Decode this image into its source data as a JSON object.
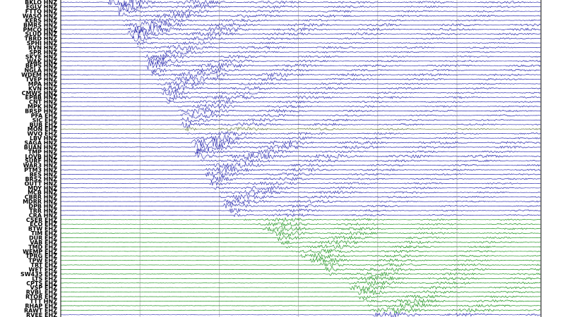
{
  "chart_data": {
    "type": "line",
    "title": "",
    "xlabel": "",
    "ylabel": "",
    "grid": true,
    "colors": {
      "primary_channel": "#1a1aa8",
      "late_channel": "#0a8a0a",
      "alt_channel": "#556b2f",
      "grid": "#b8b8b8",
      "frame": "#000000",
      "label": "#000000"
    },
    "series": [
      {
        "name": "BKLO HNZ",
        "onset": 0.1,
        "amplitude": 0.45,
        "color_key": "primary_channel"
      },
      {
        "name": "EGLV HNZ",
        "onset": 0.12,
        "amplitude": 0.4,
        "color_key": "primary_channel"
      },
      {
        "name": "FTTQ HNZ",
        "onset": 0.12,
        "amplitude": 0.38,
        "color_key": "primary_channel"
      },
      {
        "name": "WASO HNZ",
        "onset": 0.13,
        "amplitude": 0.42,
        "color_key": "primary_channel"
      },
      {
        "name": "KERS HNZ",
        "onset": 0.13,
        "amplitude": 0.35,
        "color_key": "primary_channel"
      },
      {
        "name": "BMRS HNZ",
        "onset": 0.13,
        "amplitude": 0.48,
        "color_key": "primary_channel"
      },
      {
        "name": "PMCO HNZ",
        "onset": 0.14,
        "amplitude": 0.5,
        "color_key": "primary_channel"
      },
      {
        "name": "SLUD HNZ",
        "onset": 0.14,
        "amplitude": 0.45,
        "color_key": "primary_channel"
      },
      {
        "name": "TBRD HNZ",
        "onset": 0.15,
        "amplitude": 0.3,
        "color_key": "primary_channel"
      },
      {
        "name": "SPHI HNZ",
        "onset": 0.16,
        "amplitude": 0.25,
        "color_key": "primary_channel"
      },
      {
        "name": "RVN HNZ",
        "onset": 0.16,
        "amplitude": 0.4,
        "color_key": "primary_channel"
      },
      {
        "name": "SPR HNZ",
        "onset": 0.17,
        "amplitude": 0.3,
        "color_key": "primary_channel"
      },
      {
        "name": "SKYE HNZ",
        "onset": 0.17,
        "amplitude": 0.32,
        "color_key": "primary_channel"
      },
      {
        "name": "WAK HNZ",
        "onset": 0.18,
        "amplitude": 0.35,
        "color_key": "primary_channel"
      },
      {
        "name": "BEPS HNZ",
        "onset": 0.18,
        "amplitude": 0.45,
        "color_key": "primary_channel"
      },
      {
        "name": "NGLA HNZ",
        "onset": 0.19,
        "amplitude": 0.35,
        "color_key": "primary_channel"
      },
      {
        "name": "WDEM HNZ",
        "onset": 0.19,
        "amplitude": 0.5,
        "color_key": "primary_channel"
      },
      {
        "name": "TVEP HNZ",
        "onset": 0.2,
        "amplitude": 0.4,
        "color_key": "primary_channel"
      },
      {
        "name": "MPA HNZ",
        "onset": 0.2,
        "amplitude": 0.3,
        "color_key": "primary_channel"
      },
      {
        "name": "KVN HNZ",
        "onset": 0.21,
        "amplitude": 0.32,
        "color_key": "primary_channel"
      },
      {
        "name": "CMWS HNZ",
        "onset": 0.21,
        "amplitude": 0.3,
        "color_key": "primary_channel"
      },
      {
        "name": "EPBB HNZ",
        "onset": 0.22,
        "amplitude": 0.4,
        "color_key": "primary_channel"
      },
      {
        "name": "CNT HNZ",
        "onset": 0.22,
        "amplitude": 0.3,
        "color_key": "primary_channel"
      },
      {
        "name": "MPK HNZ",
        "onset": 0.23,
        "amplitude": 0.32,
        "color_key": "primary_channel"
      },
      {
        "name": "BRSP HNZ",
        "onset": 0.24,
        "amplitude": 0.35,
        "color_key": "primary_channel"
      },
      {
        "name": "PFA EHZ",
        "onset": 0.25,
        "amplitude": 0.3,
        "color_key": "primary_channel"
      },
      {
        "name": "SIC EHZ",
        "onset": 0.25,
        "amplitude": 0.3,
        "color_key": "primary_channel"
      },
      {
        "name": "BUB EHZ",
        "onset": 0.25,
        "amplitude": 0.35,
        "color_key": "primary_channel"
      },
      {
        "name": "MON EHZ",
        "onset": 0.26,
        "amplitude": 0.3,
        "color_key": "alt_channel"
      },
      {
        "name": "WVQ EHZ",
        "onset": 0.26,
        "amplitude": 0.3,
        "color_key": "primary_channel"
      },
      {
        "name": "LBV HNZ",
        "onset": 0.27,
        "amplitude": 0.32,
        "color_key": "primary_channel"
      },
      {
        "name": "SAGA HNZ",
        "onset": 0.27,
        "amplitude": 0.5,
        "color_key": "primary_channel"
      },
      {
        "name": "BUAN HNZ",
        "onset": 0.28,
        "amplitude": 0.45,
        "color_key": "primary_channel"
      },
      {
        "name": "TMP HNZ",
        "onset": 0.28,
        "amplitude": 0.35,
        "color_key": "primary_channel"
      },
      {
        "name": "LOVB HNZ",
        "onset": 0.28,
        "amplitude": 0.55,
        "color_key": "primary_channel"
      },
      {
        "name": "SURF HNZ",
        "onset": 0.29,
        "amplitude": 0.35,
        "color_key": "primary_channel"
      },
      {
        "name": "WAR3 HNZ",
        "onset": 0.29,
        "amplitude": 0.35,
        "color_key": "primary_channel"
      },
      {
        "name": "PTM3 HNZ",
        "onset": 0.3,
        "amplitude": 0.35,
        "color_key": "primary_channel"
      },
      {
        "name": "BES HNZ",
        "onset": 0.3,
        "amplitude": 0.3,
        "color_key": "primary_channel"
      },
      {
        "name": "BRS2 HNZ",
        "onset": 0.31,
        "amplitude": 0.3,
        "color_key": "primary_channel"
      },
      {
        "name": "OUTT HNZ",
        "onset": 0.31,
        "amplitude": 0.3,
        "color_key": "primary_channel"
      },
      {
        "name": "MDY HNZ",
        "onset": 0.32,
        "amplitude": 0.3,
        "color_key": "primary_channel"
      },
      {
        "name": "MCB HNZ",
        "onset": 0.33,
        "amplitude": 0.35,
        "color_key": "primary_channel"
      },
      {
        "name": "CBRR HNZ",
        "onset": 0.33,
        "amplitude": 0.3,
        "color_key": "primary_channel"
      },
      {
        "name": "MDRR HNZ",
        "onset": 0.34,
        "amplitude": 0.3,
        "color_key": "primary_channel"
      },
      {
        "name": "DPB HNZ",
        "onset": 0.34,
        "amplitude": 0.28,
        "color_key": "primary_channel"
      },
      {
        "name": "TRR HNZ",
        "onset": 0.35,
        "amplitude": 0.28,
        "color_key": "primary_channel"
      },
      {
        "name": "CRA HNZ",
        "onset": 0.36,
        "amplitude": 0.25,
        "color_key": "primary_channel"
      },
      {
        "name": "CSER EHZ",
        "onset": 0.38,
        "amplitude": 0.25,
        "color_key": "late_channel"
      },
      {
        "name": "ECO EHZ",
        "onset": 0.4,
        "amplitude": 0.28,
        "color_key": "late_channel"
      },
      {
        "name": "BTW EHZ",
        "onset": 0.42,
        "amplitude": 0.3,
        "color_key": "late_channel"
      },
      {
        "name": "TIM EHZ",
        "onset": 0.44,
        "amplitude": 0.3,
        "color_key": "late_channel"
      },
      {
        "name": "DUR EHZ",
        "onset": 0.45,
        "amplitude": 0.3,
        "color_key": "late_channel"
      },
      {
        "name": "VAB EHZ",
        "onset": 0.46,
        "amplitude": 0.32,
        "color_key": "late_channel"
      },
      {
        "name": "TMD EHZ",
        "onset": 0.47,
        "amplitude": 0.32,
        "color_key": "late_channel"
      },
      {
        "name": "WEMP EHZ",
        "onset": 0.48,
        "amplitude": 0.3,
        "color_key": "late_channel"
      },
      {
        "name": "TPRG EHZ",
        "onset": 0.5,
        "amplitude": 0.3,
        "color_key": "late_channel"
      },
      {
        "name": "TPW EHZ",
        "onset": 0.52,
        "amplitude": 0.3,
        "color_key": "late_channel"
      },
      {
        "name": "TRT EHZ",
        "onset": 0.54,
        "amplitude": 0.3,
        "color_key": "late_channel"
      },
      {
        "name": "WET EHZ",
        "onset": 0.55,
        "amplitude": 0.32,
        "color_key": "late_channel"
      },
      {
        "name": "SW435 EHZ",
        "onset": 0.56,
        "amplitude": 0.32,
        "color_key": "late_channel"
      },
      {
        "name": "LTS EHZ",
        "onset": 0.58,
        "amplitude": 0.3,
        "color_key": "late_channel"
      },
      {
        "name": "CPTS EHZ",
        "onset": 0.6,
        "amplitude": 0.3,
        "color_key": "late_channel"
      },
      {
        "name": "VSP EHZ",
        "onset": 0.6,
        "amplitude": 0.3,
        "color_key": "late_channel"
      },
      {
        "name": "RVBL EHZ",
        "onset": 0.62,
        "amplitude": 0.3,
        "color_key": "late_channel"
      },
      {
        "name": "RTOR EHZ",
        "onset": 0.62,
        "amplitude": 0.28,
        "color_key": "late_channel"
      },
      {
        "name": "TTT HNZ",
        "onset": 0.63,
        "amplitude": 0.35,
        "color_key": "late_channel"
      },
      {
        "name": "RHAP EHZ",
        "onset": 0.64,
        "amplitude": 0.35,
        "color_key": "late_channel"
      },
      {
        "name": "RAWT EHZ",
        "onset": 0.64,
        "amplitude": 0.35,
        "color_key": "late_channel"
      },
      {
        "name": "RVEE EHZ",
        "onset": 0.65,
        "amplitude": 0.3,
        "color_key": "primary_channel"
      }
    ]
  }
}
